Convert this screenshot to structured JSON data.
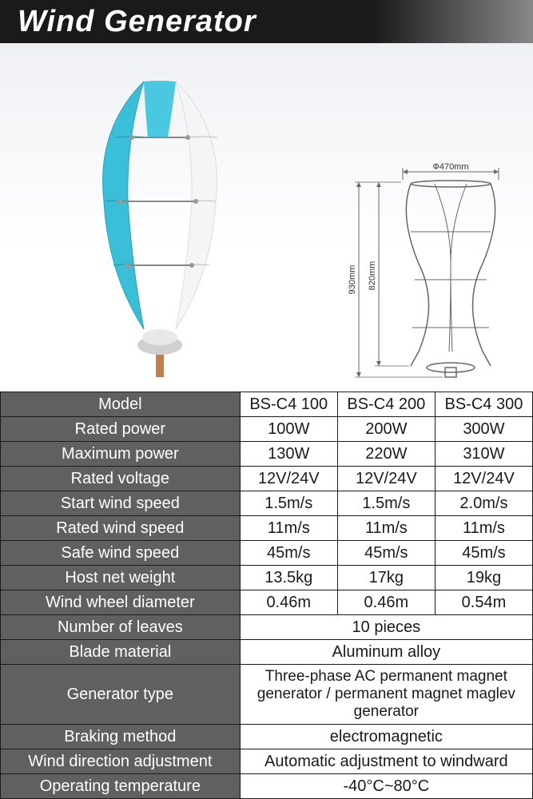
{
  "title": "Wind Generator",
  "dimensions": {
    "width_label": "Ф470mm",
    "height_outer": "930mm",
    "height_inner": "820mm"
  },
  "colors": {
    "header_bg_start": "#1a1a1a",
    "header_bg_end": "#888888",
    "header_text": "#ffffff",
    "label_bg": "#606060",
    "label_text": "#ffffff",
    "data_bg": "#ffffff",
    "data_text": "#1a1a1a",
    "border": "#1a1a1a",
    "blade_cyan": "#3bbfd8",
    "blade_white": "#f5f5f5",
    "diagram_gray": "#666666"
  },
  "table": {
    "label_width_pct": 45,
    "font_size_pt": 20,
    "rows": [
      {
        "label": "Model",
        "values": [
          "BS-C4 100",
          "BS-C4 200",
          "BS-C4 300"
        ]
      },
      {
        "label": "Rated power",
        "values": [
          "100W",
          "200W",
          "300W"
        ]
      },
      {
        "label": "Maximum power",
        "values": [
          "130W",
          "220W",
          "310W"
        ]
      },
      {
        "label": "Rated voltage",
        "values": [
          "12V/24V",
          "12V/24V",
          "12V/24V"
        ]
      },
      {
        "label": "Start wind speed",
        "values": [
          "1.5m/s",
          "1.5m/s",
          "2.0m/s"
        ]
      },
      {
        "label": "Rated wind speed",
        "values": [
          "11m/s",
          "11m/s",
          "11m/s"
        ]
      },
      {
        "label": "Safe wind speed",
        "values": [
          "45m/s",
          "45m/s",
          "45m/s"
        ]
      },
      {
        "label": "Host net weight",
        "values": [
          "13.5kg",
          "17kg",
          "19kg"
        ]
      },
      {
        "label": "Wind wheel diameter",
        "values": [
          "0.46m",
          "0.46m",
          "0.54m"
        ]
      },
      {
        "label": "Number of leaves",
        "merged": "10 pieces"
      },
      {
        "label": "Blade material",
        "merged": "Aluminum alloy"
      },
      {
        "label": "Generator type",
        "merged": "Three-phase AC permanent magnet generator / permanent magnet maglev generator",
        "tall": true
      },
      {
        "label": "Braking method",
        "merged": "electromagnetic"
      },
      {
        "label": "Wind direction adjustment",
        "merged": "Automatic adjustment to windward"
      },
      {
        "label": "Operating temperature",
        "merged": "-40°C~80°C"
      }
    ]
  }
}
